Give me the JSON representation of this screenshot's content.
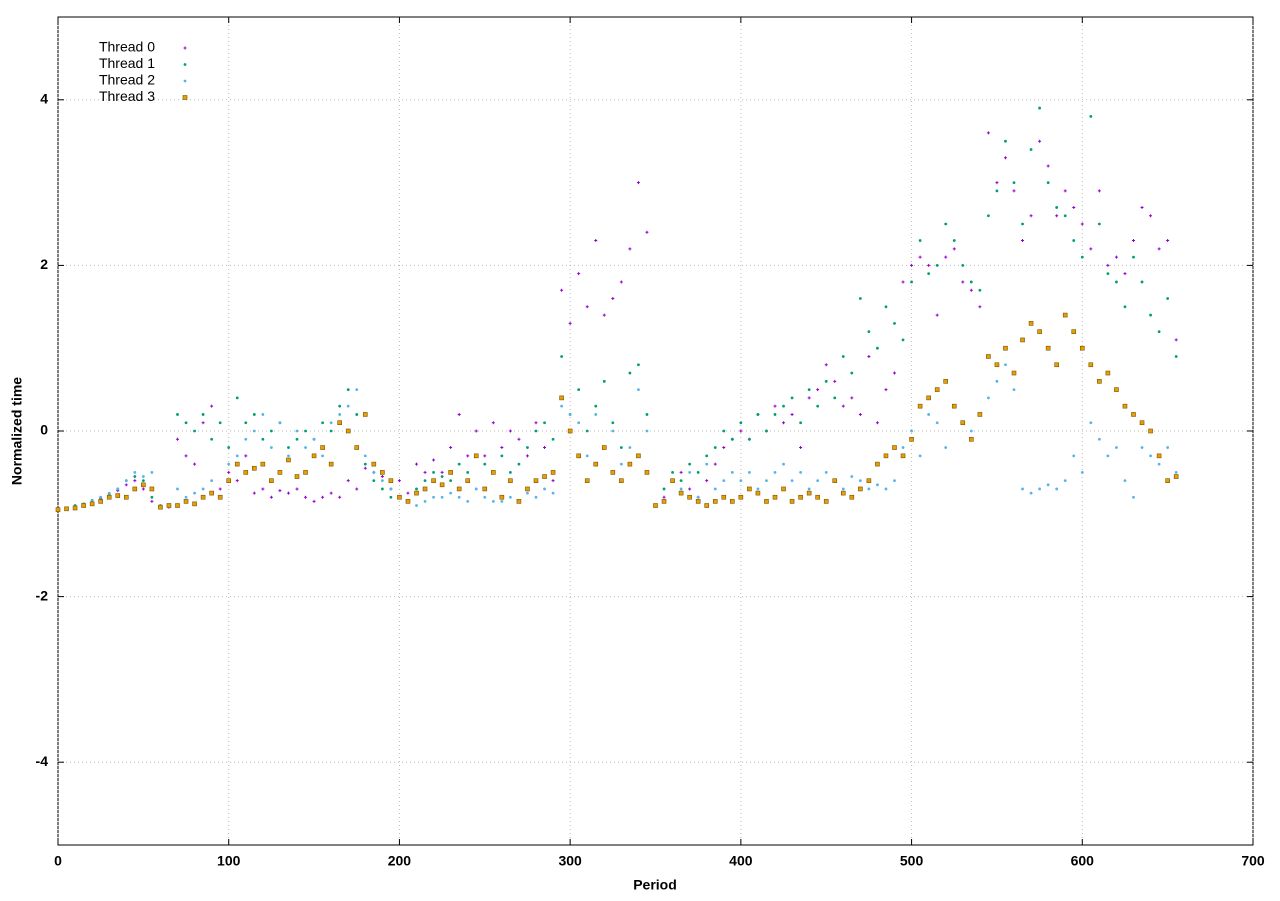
{
  "chart_data": {
    "type": "scatter",
    "x_label": "Period",
    "y_label": "Normalized time",
    "xlim": [
      0,
      700
    ],
    "xticks": [
      0,
      100,
      200,
      300,
      400,
      500,
      600,
      700
    ],
    "ylim": [
      -5,
      5
    ],
    "yticks": [
      -4,
      -2,
      0,
      2,
      4
    ],
    "grid": true,
    "legend": "top-left",
    "x": [
      0,
      5,
      10,
      15,
      20,
      25,
      30,
      35,
      40,
      45,
      50,
      55,
      60,
      65,
      70,
      75,
      80,
      85,
      90,
      95,
      100,
      105,
      110,
      115,
      120,
      125,
      130,
      135,
      140,
      145,
      150,
      155,
      160,
      165,
      170,
      175,
      180,
      185,
      190,
      195,
      200,
      205,
      210,
      215,
      220,
      225,
      230,
      235,
      240,
      245,
      250,
      255,
      260,
      265,
      270,
      275,
      280,
      285,
      290,
      295,
      300,
      305,
      310,
      315,
      320,
      325,
      330,
      335,
      340,
      345,
      350,
      355,
      360,
      365,
      370,
      375,
      380,
      385,
      390,
      395,
      400,
      405,
      410,
      415,
      420,
      425,
      430,
      435,
      440,
      445,
      450,
      455,
      460,
      465,
      470,
      475,
      480,
      485,
      490,
      495,
      500,
      505,
      510,
      515,
      520,
      525,
      530,
      535,
      540,
      545,
      550,
      555,
      560,
      565,
      570,
      575,
      580,
      585,
      590,
      595,
      600,
      605,
      610,
      615,
      620,
      625,
      630,
      635,
      640,
      645,
      650,
      655
    ],
    "series": [
      {
        "name": "Thread 0",
        "color": "#9400d3",
        "marker": "plus",
        "values": [
          -0.95,
          -0.94,
          -0.92,
          -0.9,
          -0.87,
          -0.82,
          -0.78,
          -0.72,
          -0.65,
          -0.6,
          -0.7,
          -0.85,
          -0.9,
          -0.92,
          -0.1,
          -0.3,
          -0.4,
          0.1,
          0.3,
          -0.7,
          -0.5,
          -0.6,
          -0.3,
          -0.75,
          -0.7,
          -0.8,
          -0.72,
          -0.75,
          -0.7,
          -0.8,
          -0.85,
          -0.8,
          -0.75,
          -0.8,
          -0.6,
          -0.7,
          -0.45,
          -0.5,
          -0.55,
          -0.7,
          -0.6,
          -0.75,
          -0.4,
          -0.5,
          -0.35,
          -0.5,
          -0.2,
          0.2,
          -0.3,
          0.0,
          -0.3,
          0.1,
          -0.2,
          0.0,
          -0.1,
          -0.3,
          0.1,
          -0.2,
          -0.6,
          1.7,
          1.3,
          1.9,
          1.5,
          2.3,
          1.4,
          1.6,
          1.8,
          2.2,
          3.0,
          2.4,
          -0.9,
          -0.8,
          -0.6,
          -0.5,
          -0.7,
          -0.8,
          -0.6,
          -0.4,
          -0.2,
          -0.1,
          0.0,
          -0.1,
          0.2,
          0.0,
          0.3,
          0.1,
          0.2,
          -0.2,
          0.4,
          0.5,
          0.8,
          0.6,
          0.3,
          0.4,
          0.2,
          0.9,
          0.1,
          0.5,
          0.7,
          1.8,
          2.0,
          2.1,
          2.0,
          1.4,
          2.1,
          2.2,
          1.8,
          1.7,
          1.5,
          3.6,
          3.0,
          3.3,
          2.9,
          2.3,
          2.6,
          3.5,
          3.2,
          2.6,
          2.9,
          2.7,
          2.5,
          2.2,
          2.9,
          2.0,
          2.1,
          1.9,
          2.3,
          2.7,
          2.6,
          2.2,
          2.3,
          1.1
        ]
      },
      {
        "name": "Thread 1",
        "color": "#009e73",
        "marker": "dot",
        "values": [
          -0.95,
          -0.93,
          -0.9,
          -0.88,
          -0.84,
          -0.8,
          -0.76,
          -0.7,
          -0.6,
          -0.55,
          -0.6,
          -0.8,
          -0.9,
          -0.9,
          0.2,
          0.1,
          0.0,
          0.2,
          -0.1,
          0.1,
          -0.2,
          0.4,
          0.1,
          0.2,
          -0.1,
          0.0,
          0.1,
          -0.2,
          -0.1,
          0.0,
          -0.1,
          0.1,
          0.0,
          0.3,
          0.5,
          0.2,
          -0.4,
          -0.6,
          -0.7,
          -0.8,
          -0.8,
          -0.85,
          -0.7,
          -0.6,
          -0.5,
          -0.55,
          -0.6,
          -0.4,
          -0.5,
          -0.3,
          -0.4,
          -0.5,
          -0.3,
          -0.5,
          -0.4,
          -0.2,
          0.0,
          0.1,
          -0.1,
          0.9,
          0.2,
          0.5,
          0.0,
          0.3,
          0.6,
          0.1,
          -0.2,
          0.7,
          0.8,
          0.2,
          -0.9,
          -0.7,
          -0.5,
          -0.6,
          -0.4,
          -0.5,
          -0.3,
          -0.2,
          0.0,
          -0.1,
          0.1,
          -0.1,
          0.2,
          0.0,
          0.2,
          0.3,
          0.4,
          0.1,
          0.5,
          0.3,
          0.6,
          0.4,
          0.9,
          0.7,
          1.6,
          1.2,
          1.0,
          1.5,
          1.3,
          1.1,
          1.8,
          2.3,
          1.9,
          2.0,
          2.5,
          2.3,
          2.0,
          1.8,
          1.7,
          2.6,
          2.9,
          3.5,
          3.0,
          2.5,
          3.4,
          3.9,
          3.0,
          2.7,
          2.6,
          2.3,
          2.1,
          3.8,
          2.5,
          1.9,
          1.8,
          1.5,
          2.1,
          1.8,
          1.4,
          1.2,
          1.6,
          0.9
        ]
      },
      {
        "name": "Thread 2",
        "color": "#56b4e9",
        "marker": "dot",
        "values": [
          -0.95,
          -0.94,
          -0.92,
          -0.9,
          -0.85,
          -0.8,
          -0.75,
          -0.7,
          -0.6,
          -0.5,
          -0.55,
          -0.5,
          -0.9,
          -0.9,
          -0.7,
          -0.8,
          -0.75,
          -0.7,
          -0.6,
          -0.8,
          -0.4,
          -0.3,
          -0.1,
          0.0,
          0.2,
          -0.2,
          0.1,
          -0.3,
          0.0,
          -0.2,
          -0.1,
          -0.3,
          0.1,
          0.2,
          0.3,
          0.5,
          -0.3,
          -0.5,
          -0.6,
          -0.7,
          -0.8,
          -0.85,
          -0.9,
          -0.85,
          -0.8,
          -0.8,
          -0.75,
          -0.8,
          -0.85,
          -0.7,
          -0.8,
          -0.85,
          -0.85,
          -0.8,
          -0.85,
          -0.75,
          -0.8,
          -0.7,
          -0.75,
          0.3,
          0.2,
          0.1,
          -0.3,
          0.2,
          -0.2,
          0.0,
          -0.4,
          -0.2,
          0.5,
          0.0,
          -0.9,
          -0.85,
          -0.6,
          -0.7,
          -0.5,
          -0.8,
          -0.4,
          -0.7,
          -0.6,
          -0.5,
          -0.6,
          -0.5,
          -0.7,
          -0.6,
          -0.5,
          -0.4,
          -0.6,
          -0.5,
          -0.7,
          -0.6,
          -0.5,
          -0.6,
          -0.7,
          -0.55,
          -0.6,
          -0.7,
          -0.65,
          -0.7,
          -0.6,
          -0.2,
          0.0,
          -0.3,
          0.2,
          0.1,
          -0.2,
          0.3,
          0.1,
          0.0,
          0.2,
          0.4,
          0.6,
          0.8,
          0.5,
          -0.7,
          -0.75,
          -0.7,
          -0.65,
          -0.7,
          -0.6,
          -0.3,
          -0.5,
          0.1,
          -0.1,
          -0.3,
          -0.2,
          -0.6,
          -0.8,
          -0.2,
          -0.3,
          -0.4,
          -0.2,
          -0.5
        ]
      },
      {
        "name": "Thread 3",
        "color": "#e69f00",
        "marker": "square",
        "values": [
          -0.95,
          -0.94,
          -0.93,
          -0.9,
          -0.88,
          -0.85,
          -0.8,
          -0.78,
          -0.8,
          -0.7,
          -0.65,
          -0.7,
          -0.92,
          -0.9,
          -0.9,
          -0.85,
          -0.88,
          -0.8,
          -0.75,
          -0.8,
          -0.6,
          -0.4,
          -0.5,
          -0.45,
          -0.4,
          -0.6,
          -0.5,
          -0.35,
          -0.55,
          -0.5,
          -0.3,
          -0.2,
          -0.4,
          0.1,
          0.0,
          -0.2,
          0.2,
          -0.4,
          -0.5,
          -0.6,
          -0.8,
          -0.85,
          -0.75,
          -0.7,
          -0.6,
          -0.65,
          -0.5,
          -0.7,
          -0.6,
          -0.3,
          -0.7,
          -0.5,
          -0.8,
          -0.6,
          -0.85,
          -0.7,
          -0.6,
          -0.55,
          -0.5,
          0.4,
          0.0,
          -0.3,
          -0.6,
          -0.4,
          -0.2,
          -0.5,
          -0.6,
          -0.4,
          -0.3,
          -0.5,
          -0.9,
          -0.85,
          -0.6,
          -0.75,
          -0.8,
          -0.85,
          -0.9,
          -0.85,
          -0.8,
          -0.85,
          -0.8,
          -0.7,
          -0.75,
          -0.85,
          -0.8,
          -0.7,
          -0.85,
          -0.8,
          -0.75,
          -0.8,
          -0.85,
          -0.6,
          -0.75,
          -0.8,
          -0.7,
          -0.6,
          -0.4,
          -0.3,
          -0.2,
          -0.3,
          -0.1,
          0.3,
          0.4,
          0.5,
          0.6,
          0.3,
          0.1,
          -0.1,
          0.2,
          0.9,
          0.8,
          1.0,
          0.7,
          1.1,
          1.3,
          1.2,
          1.0,
          0.8,
          1.4,
          1.2,
          1.0,
          0.8,
          0.6,
          0.7,
          0.5,
          0.3,
          0.2,
          0.1,
          0.0,
          -0.3,
          -0.6,
          -0.55
        ]
      }
    ]
  }
}
